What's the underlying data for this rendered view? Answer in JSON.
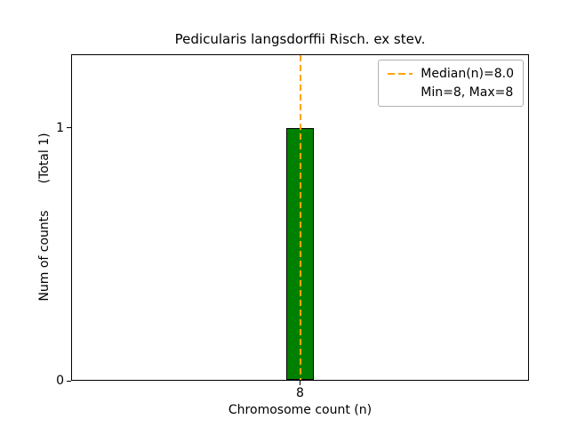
{
  "chart_data": {
    "type": "bar",
    "title": "Pedicularis langsdorffii Risch. ex stev.",
    "xlabel": "Chromosome count (n)",
    "ylabel": "Num of counts",
    "ylabel_total": "(Total 1)",
    "x": [
      8
    ],
    "values": [
      1
    ],
    "bar_width": 0.06,
    "bar_color": "#008000",
    "bar_edge_color": "#000000",
    "median": 8.0,
    "median_color": "#FFA500",
    "xlim": [
      7.5,
      8.5
    ],
    "ylim": [
      0,
      1.29
    ],
    "xticks": [
      8
    ],
    "xtick_labels": [
      "8"
    ],
    "yticks": [
      0,
      1
    ],
    "ytick_labels": [
      "0",
      "1"
    ],
    "legend_position": "upper right",
    "grid": false,
    "legend": [
      "Median(n)=8.0",
      "Min=8, Max=8"
    ]
  }
}
